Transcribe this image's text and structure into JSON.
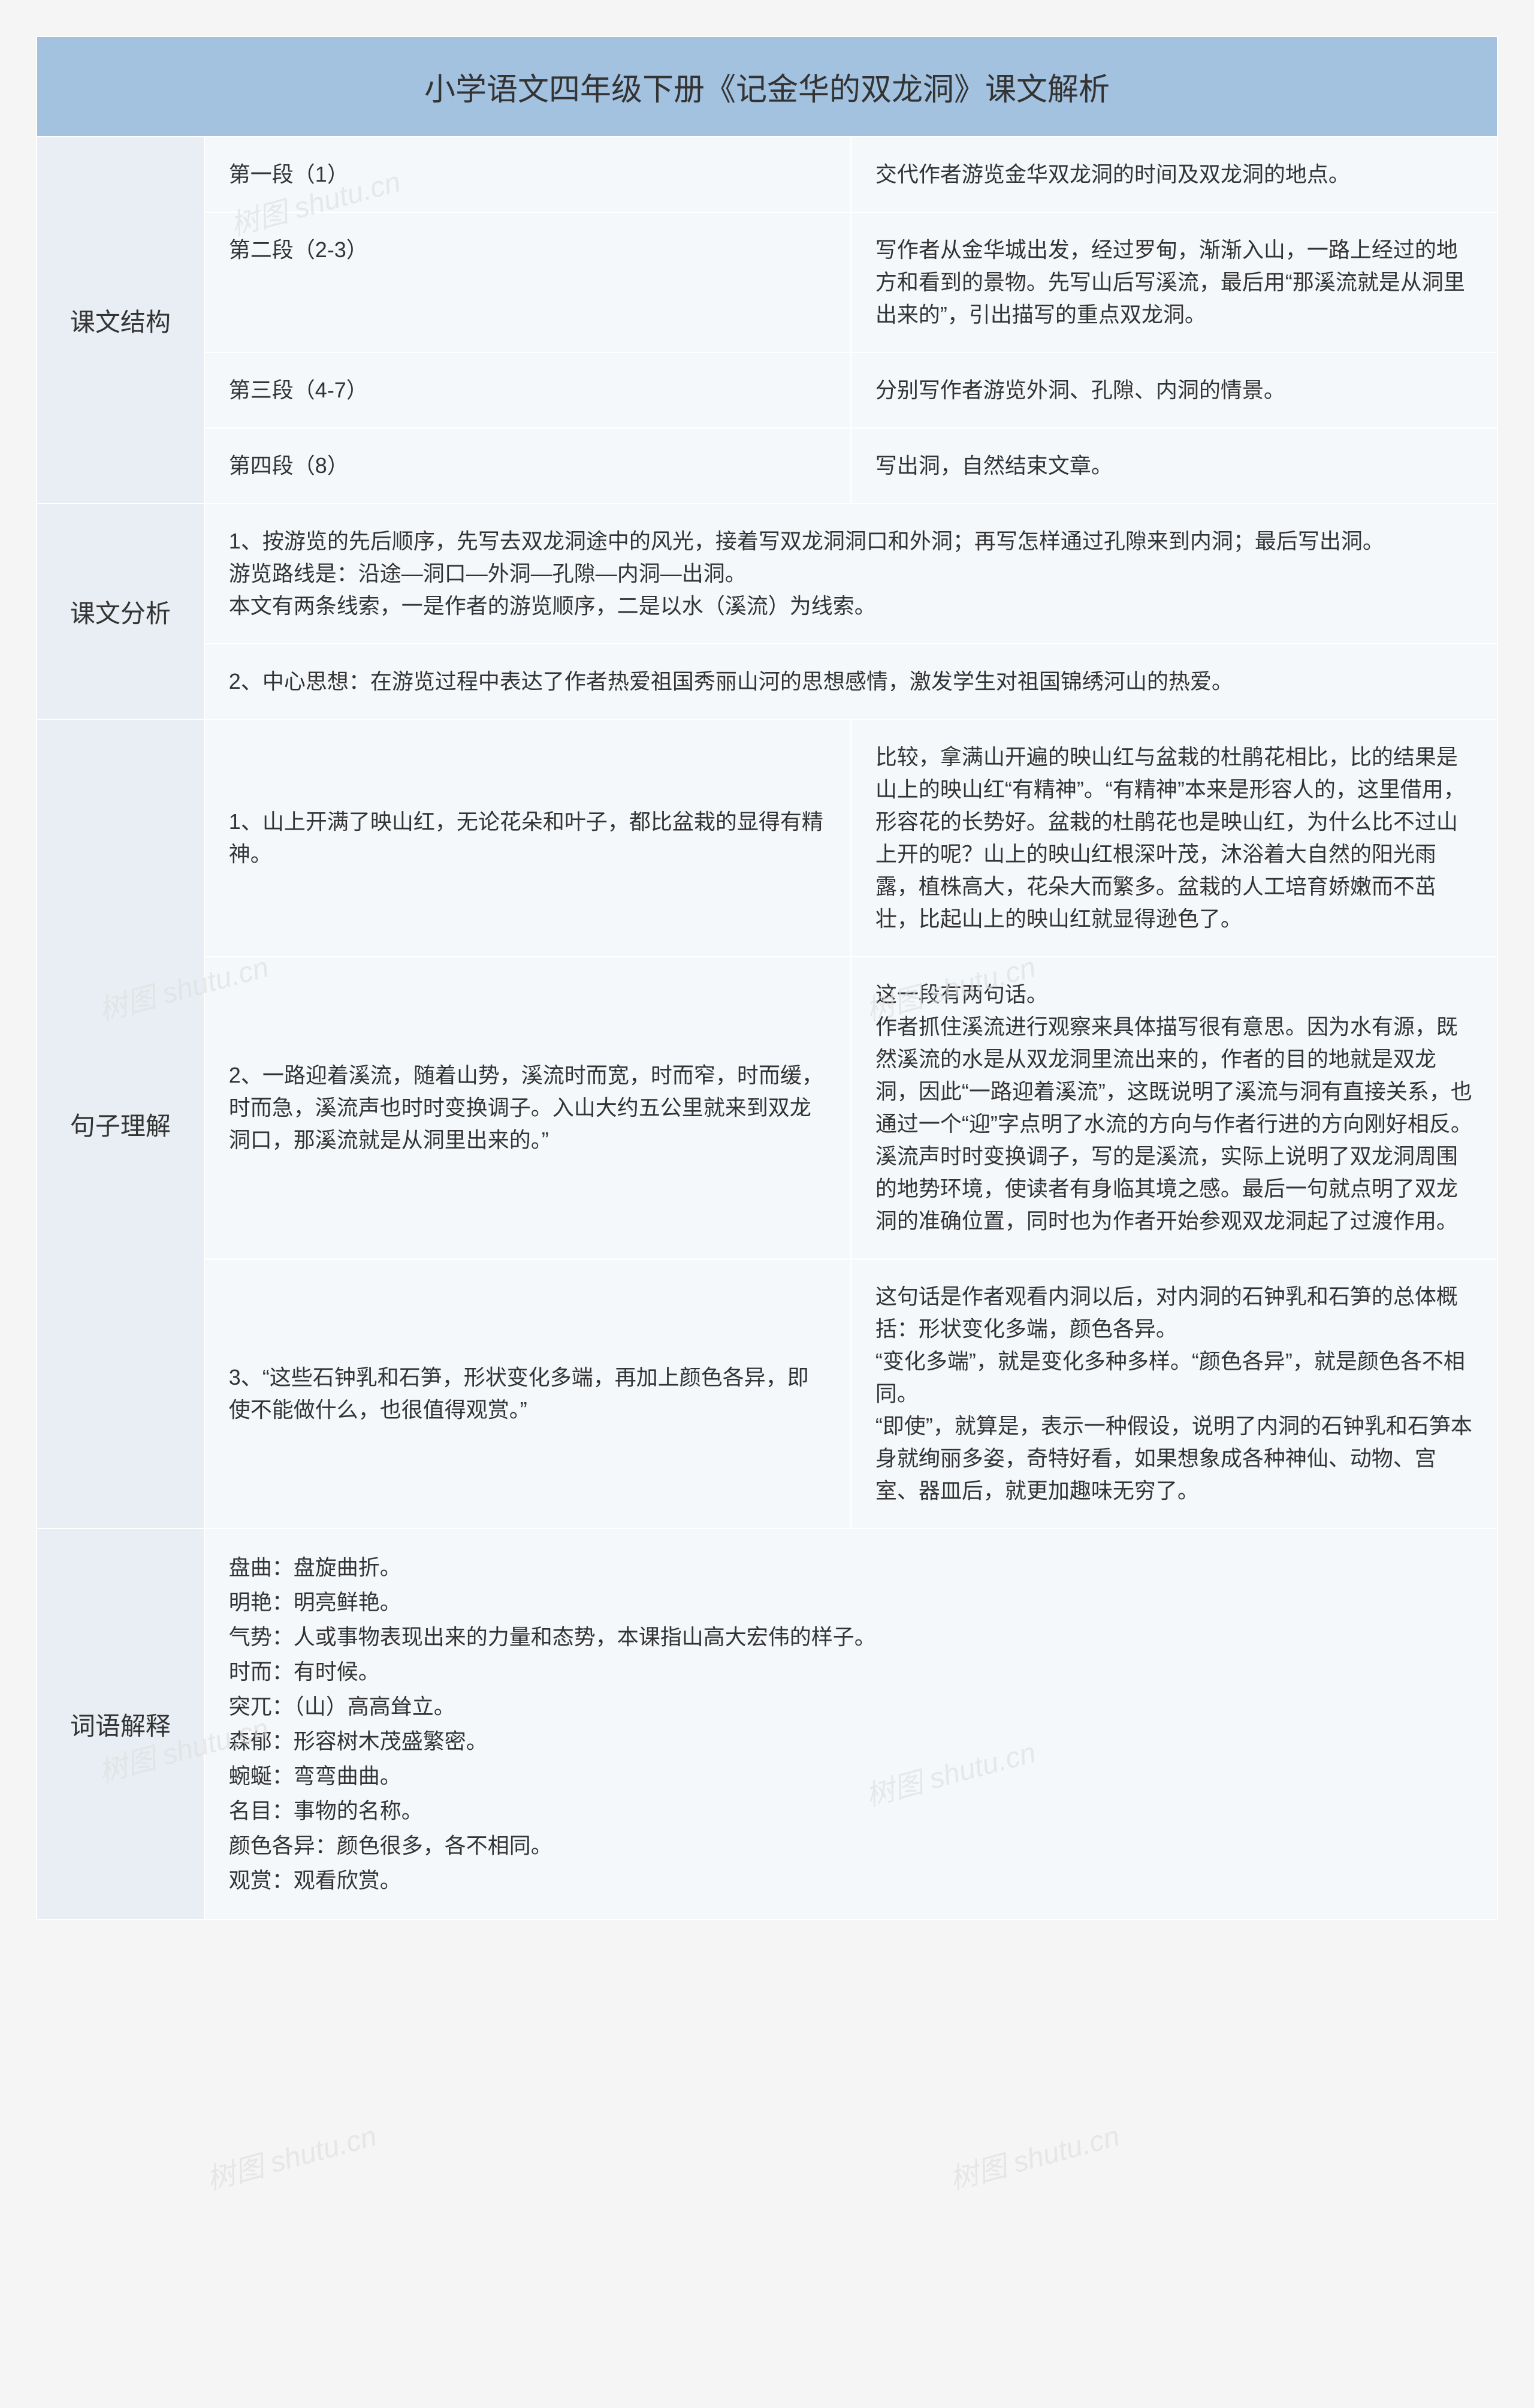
{
  "title": "小学语文四年级下册《记金华的双龙洞》课文解析",
  "watermark": "树图 shutu.cn",
  "colors": {
    "header_bg": "#a3c2e0",
    "label_bg": "#e8eef4",
    "cell_bg": "#f5f8fb",
    "border": "#ffffff",
    "text": "#333333",
    "watermark": "#e0e0e0"
  },
  "sections": {
    "structure": {
      "label": "课文结构",
      "rows": [
        {
          "left": "第一段（1）",
          "right": "交代作者游览金华双龙洞的时间及双龙洞的地点。"
        },
        {
          "left": "第二段（2-3）",
          "right": "写作者从金华城出发，经过罗甸，渐渐入山，一路上经过的地方和看到的景物。先写山后写溪流，最后用“那溪流就是从洞里出来的”，引出描写的重点双龙洞。"
        },
        {
          "left": "第三段（4-7）",
          "right": "分别写作者游览外洞、孔隙、内洞的情景。"
        },
        {
          "left": "第四段（8）",
          "right": "写出洞，自然结束文章。"
        }
      ]
    },
    "analysis": {
      "label": "课文分析",
      "rows": [
        "1、按游览的先后顺序，先写去双龙洞途中的风光，接着写双龙洞洞口和外洞；再写怎样通过孔隙来到内洞；最后写出洞。\n游览路线是：沿途—洞口—外洞—孔隙—内洞—出洞。\n本文有两条线索，一是作者的游览顺序，二是以水（溪流）为线索。",
        "2、中心思想：在游览过程中表达了作者热爱祖国秀丽山河的思想感情，激发学生对祖国锦绣河山的热爱。"
      ]
    },
    "sentences": {
      "label": "句子理解",
      "rows": [
        {
          "left": "1、山上开满了映山红，无论花朵和叶子，都比盆栽的显得有精神。",
          "right": "比较，拿满山开遍的映山红与盆栽的杜鹃花相比，比的结果是山上的映山红“有精神”。“有精神”本来是形容人的，这里借用，形容花的长势好。盆栽的杜鹃花也是映山红，为什么比不过山上开的呢？山上的映山红根深叶茂，沐浴着大自然的阳光雨露，植株高大，花朵大而繁多。盆栽的人工培育娇嫩而不茁壮，比起山上的映山红就显得逊色了。"
        },
        {
          "left": "2、一路迎着溪流，随着山势，溪流时而宽，时而窄，时而缓，时而急，溪流声也时时变换调子。入山大约五公里就来到双龙洞口，那溪流就是从洞里出来的。”",
          "right": "这一段有两句话。\n作者抓住溪流进行观察来具体描写很有意思。因为水有源，既然溪流的水是从双龙洞里流出来的，作者的目的地就是双龙洞，因此“一路迎着溪流”，这既说明了溪流与洞有直接关系，也通过一个“迎”字点明了水流的方向与作者行进的方向刚好相反。溪流声时时变换调子，写的是溪流，实际上说明了双龙洞周围的地势环境，使读者有身临其境之感。最后一句就点明了双龙洞的准确位置，同时也为作者开始参观双龙洞起了过渡作用。"
        },
        {
          "left": "3、“这些石钟乳和石笋，形状变化多端，再加上颜色各异，即使不能做什么，也很值得观赏。”",
          "right": "这句话是作者观看内洞以后，对内洞的石钟乳和石笋的总体概括：形状变化多端，颜色各异。\n“变化多端”，就是变化多种多样。“颜色各异”，就是颜色各不相同。\n“即使”，就算是，表示一种假设，说明了内洞的石钟乳和石笋本身就绚丽多姿，奇特好看，如果想象成各种神仙、动物、宫室、器皿后，就更加趣味无穷了。"
        }
      ]
    },
    "words": {
      "label": "词语解释",
      "items": [
        "盘曲：盘旋曲折。",
        "明艳：明亮鲜艳。",
        "气势：人或事物表现出来的力量和态势，本课指山高大宏伟的样子。",
        "时而：有时候。",
        "突兀：（山）高高耸立。",
        "森郁：形容树木茂盛繁密。",
        "蜿蜒：弯弯曲曲。",
        "名目：事物的名称。",
        "颜色各异：颜色很多，各不相同。",
        "观赏：观看欣赏。"
      ]
    }
  }
}
